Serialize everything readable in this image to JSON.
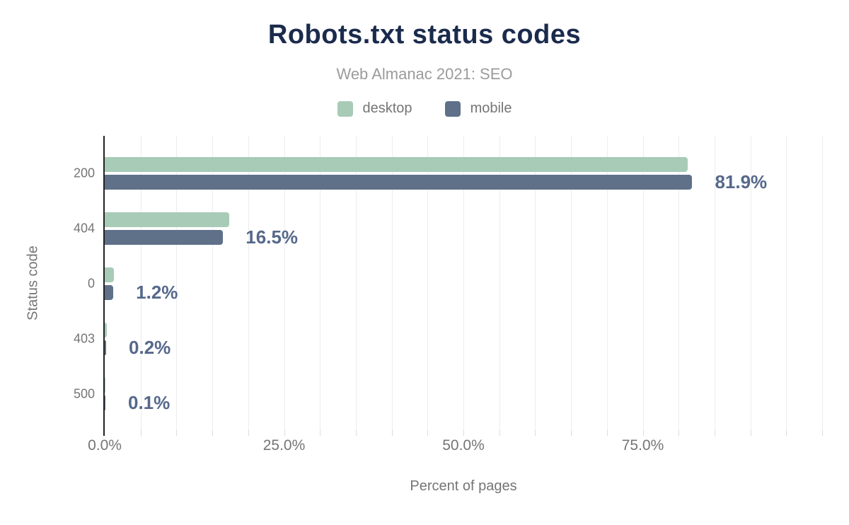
{
  "chart_data": {
    "type": "bar",
    "orientation": "horizontal",
    "title": "Robots.txt status codes",
    "subtitle": "Web Almanac 2021: SEO",
    "xlabel": "Percent of pages",
    "ylabel": "Status code",
    "categories": [
      "200",
      "404",
      "0",
      "403",
      "500"
    ],
    "series": [
      {
        "name": "desktop",
        "color": "#a8cbb8",
        "values": [
          81.3,
          17.4,
          1.3,
          0.3,
          0.1
        ]
      },
      {
        "name": "mobile",
        "color": "#5f7089",
        "values": [
          81.9,
          16.5,
          1.2,
          0.2,
          0.1
        ]
      }
    ],
    "value_labels": [
      "81.9%",
      "16.5%",
      "1.2%",
      "0.2%",
      "0.1%"
    ],
    "labeled_series": "mobile",
    "xlim": [
      0,
      100
    ],
    "x_major_tick_labels": [
      "0.0%",
      "25.0%",
      "50.0%",
      "75.0%"
    ],
    "x_major_tick_values": [
      0,
      25,
      50,
      75
    ],
    "grid_step_pct": 5,
    "grid": "vertical-minor",
    "legend_position": "top",
    "colors": {
      "title": "#1b2b4d",
      "subtitle": "#9b9b9b",
      "axis_text": "#757575",
      "value_label": "#56688b",
      "gridline": "#ededed",
      "axis_line": "#222222",
      "background": "#ffffff"
    }
  }
}
